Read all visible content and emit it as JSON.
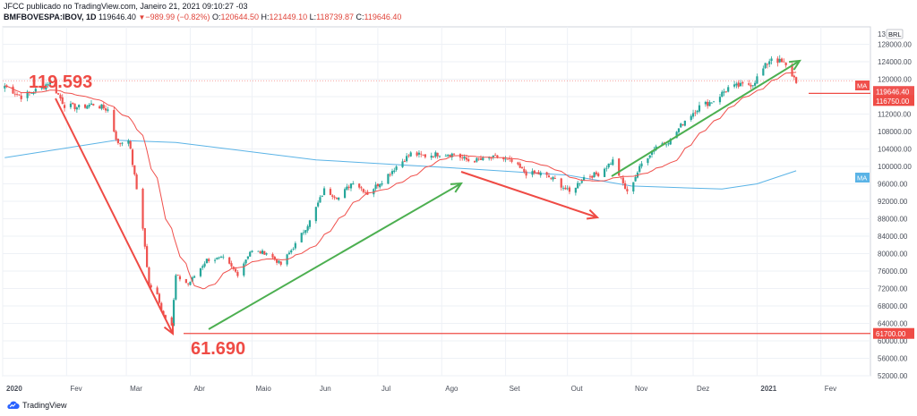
{
  "header": {
    "line1": "JFCC publicado no TradingView.com, Janeiro 21, 2021 09:10:27 -03",
    "symbol": "BMFBOVESPA:IBOV, 1D",
    "last": "119646.40",
    "change": "−989.99 (−0.82%)",
    "o_label": "O:",
    "o_value": "120644.50",
    "h_label": "H:",
    "h_value": "121449.10",
    "l_label": "L:",
    "l_value": "118739.87",
    "c_label": "C:",
    "c_value": "119646.40"
  },
  "footer": {
    "brand": "TradingView",
    "logo_icon": "tradingview-cloud-logo-icon"
  },
  "colors": {
    "up": "#26a69a",
    "down": "#ef5350",
    "ma_short": "#f0504c",
    "ma_long": "#5ab3e6",
    "annot_red": "#ef4b45",
    "annot_green": "#4caf50",
    "grid": "#eef1f6",
    "axis_text": "#4a4f5a"
  },
  "chart_data": {
    "type": "candlestick",
    "currency": "BRL",
    "ylim": [
      52000,
      132000
    ],
    "x_labels": [
      "2020",
      "Fev",
      "Mar",
      "Abr",
      "Maio",
      "Jun",
      "Jul",
      "Ago",
      "Set",
      "Out",
      "Nov",
      "Dez",
      "2021",
      "Fev"
    ],
    "y_ticks": [
      52000,
      56000,
      60000,
      64000,
      68000,
      72000,
      76000,
      80000,
      84000,
      88000,
      92000,
      96000,
      100000,
      104000,
      108000,
      112000,
      116000,
      120000,
      124000,
      128000
    ],
    "y_tick_labels": [
      "52000.00",
      "56000.00",
      "60000.00",
      "64000.00",
      "68000.00",
      "72000.00",
      "76000.00",
      "80000.00",
      "84000.00",
      "88000.00",
      "92000.00",
      "96000.00",
      "100000.00",
      "104000.00",
      "108000.00",
      "112000.00",
      "116000.00",
      "120000.00",
      "124000.00",
      "128000.00"
    ],
    "top_partial_label": "13",
    "close_path": [
      [
        "2020-01-02",
        118500
      ],
      [
        "2020-01-10",
        116000
      ],
      [
        "2020-01-20",
        118000
      ],
      [
        "2020-01-24",
        119593
      ],
      [
        "2020-01-31",
        114000
      ],
      [
        "2020-02-07",
        113500
      ],
      [
        "2020-02-14",
        114300
      ],
      [
        "2020-02-21",
        113000
      ],
      [
        "2020-02-26",
        105000
      ],
      [
        "2020-03-02",
        106500
      ],
      [
        "2020-03-09",
        86000
      ],
      [
        "2020-03-12",
        72500
      ],
      [
        "2020-03-16",
        71000
      ],
      [
        "2020-03-18",
        66900
      ],
      [
        "2020-03-23",
        63600
      ],
      [
        "2020-03-25",
        74900
      ],
      [
        "2020-03-31",
        73000
      ],
      [
        "2020-04-09",
        78600
      ],
      [
        "2020-04-17",
        78900
      ],
      [
        "2020-04-24",
        75300
      ],
      [
        "2020-04-30",
        80500
      ],
      [
        "2020-05-08",
        80200
      ],
      [
        "2020-05-15",
        77500
      ],
      [
        "2020-05-22",
        82100
      ],
      [
        "2020-05-29",
        87400
      ],
      [
        "2020-06-05",
        94600
      ],
      [
        "2020-06-12",
        92800
      ],
      [
        "2020-06-19",
        96600
      ],
      [
        "2020-06-26",
        93800
      ],
      [
        "2020-07-03",
        96700
      ],
      [
        "2020-07-10",
        100000
      ],
      [
        "2020-07-17",
        102900
      ],
      [
        "2020-07-24",
        102400
      ],
      [
        "2020-07-31",
        102900
      ],
      [
        "2020-08-07",
        102800
      ],
      [
        "2020-08-14",
        101300
      ],
      [
        "2020-08-21",
        101500
      ],
      [
        "2020-08-28",
        102100
      ],
      [
        "2020-09-04",
        101000
      ],
      [
        "2020-09-11",
        98400
      ],
      [
        "2020-09-18",
        98300
      ],
      [
        "2020-09-25",
        96900
      ],
      [
        "2020-10-02",
        94000
      ],
      [
        "2020-10-09",
        97500
      ],
      [
        "2020-10-16",
        98300
      ],
      [
        "2020-10-23",
        101300
      ],
      [
        "2020-10-28",
        96000
      ],
      [
        "2020-10-30",
        93900
      ],
      [
        "2020-11-06",
        100600
      ],
      [
        "2020-11-13",
        104700
      ],
      [
        "2020-11-20",
        106000
      ],
      [
        "2020-11-27",
        110600
      ],
      [
        "2020-12-04",
        113700
      ],
      [
        "2020-12-11",
        115100
      ],
      [
        "2020-12-18",
        118000
      ],
      [
        "2020-12-30",
        119000
      ],
      [
        "2021-01-08",
        125000
      ],
      [
        "2021-01-14",
        123500
      ],
      [
        "2021-01-20",
        119646
      ]
    ],
    "ma_short_label": "MA",
    "ma_short_value": "119646.40",
    "ma_long_label": "MA",
    "ma_long_path": [
      [
        "2020-01-02",
        102000
      ],
      [
        "2020-02-25",
        106000
      ],
      [
        "2020-03-25",
        105500
      ],
      [
        "2020-06-01",
        101500
      ],
      [
        "2020-08-15",
        99400
      ],
      [
        "2020-10-01",
        98000
      ],
      [
        "2020-11-01",
        95500
      ],
      [
        "2020-12-15",
        94800
      ],
      [
        "2021-01-01",
        96000
      ],
      [
        "2021-01-20",
        99000
      ]
    ],
    "price_labels": {
      "last_price": "119646.40",
      "level_high": "116750.00",
      "level_low": "61700.00"
    },
    "annotations": {
      "high_text": "119.593",
      "low_text": "61.690"
    }
  }
}
